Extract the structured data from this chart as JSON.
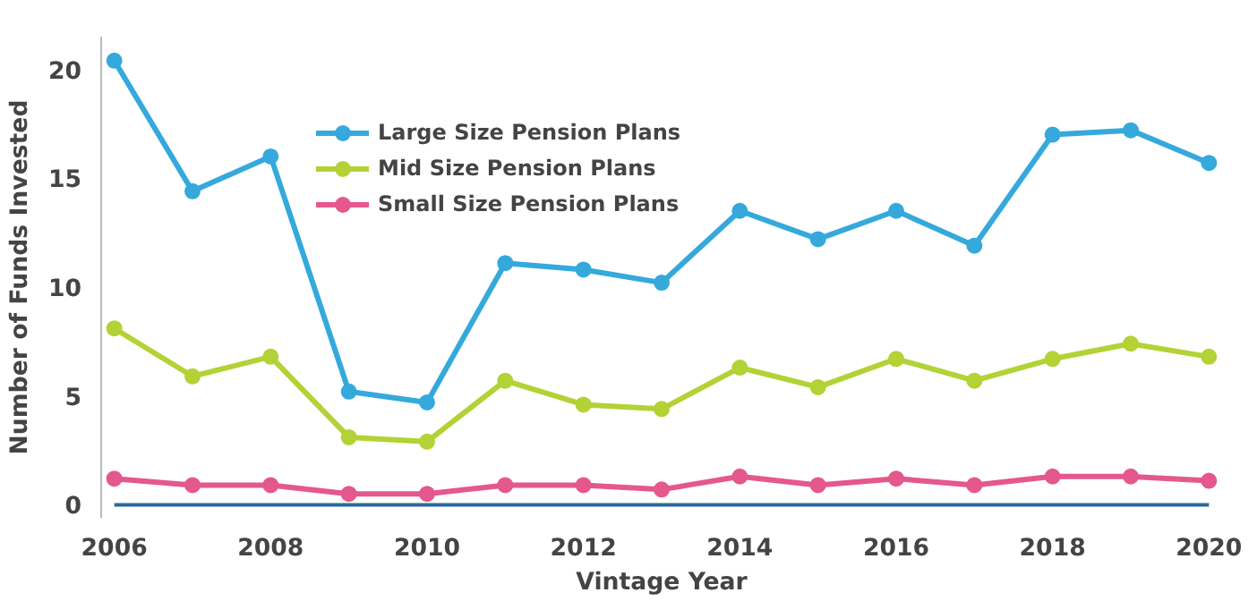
{
  "chart_data": {
    "type": "line",
    "xlabel": "Vintage Year",
    "ylabel": "Number of Funds Invested",
    "x": [
      2006,
      2007,
      2008,
      2009,
      2010,
      2011,
      2012,
      2013,
      2014,
      2015,
      2016,
      2017,
      2018,
      2019,
      2020
    ],
    "series": [
      {
        "name": "Large Size Pension Plans",
        "color": "#35a9dc",
        "values": [
          20.4,
          14.4,
          16.0,
          5.2,
          4.7,
          11.1,
          10.8,
          10.2,
          13.5,
          12.2,
          13.5,
          11.9,
          17.0,
          17.2,
          15.7
        ]
      },
      {
        "name": "Mid Size Pension Plans",
        "color": "#b2d235",
        "values": [
          8.1,
          5.9,
          6.8,
          3.1,
          2.9,
          5.7,
          4.6,
          4.4,
          6.3,
          5.4,
          6.7,
          5.7,
          6.7,
          7.4,
          6.8
        ]
      },
      {
        "name": "Small Size Pension Plans",
        "color": "#e4588d",
        "values": [
          1.2,
          0.9,
          0.9,
          0.5,
          0.5,
          0.9,
          0.9,
          0.7,
          1.3,
          0.9,
          1.2,
          0.9,
          1.3,
          1.3,
          1.1
        ]
      }
    ],
    "xlim": [
      2006,
      2020
    ],
    "ylim": [
      0,
      21.5
    ],
    "xticks": [
      2006,
      2008,
      2010,
      2012,
      2014,
      2016,
      2018,
      2020
    ],
    "yticks": [
      0,
      5,
      10,
      15,
      20
    ],
    "grid": false,
    "legend": "top left",
    "marker": "circle",
    "line_style": "solid"
  }
}
